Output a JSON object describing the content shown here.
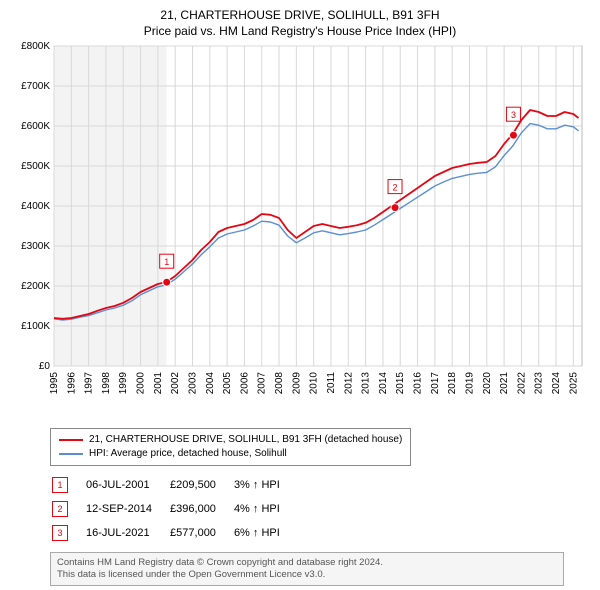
{
  "title": "21, CHARTERHOUSE DRIVE, SOLIHULL, B91 3FH",
  "subtitle": "Price paid vs. HM Land Registry's House Price Index (HPI)",
  "chart": {
    "type": "line",
    "background_color": "#ffffff",
    "plot_bg_left": "#f3f3f3",
    "grid_color": "#d8d8d8",
    "x": {
      "min": 1995,
      "max": 2025.5,
      "ticks": [
        1995,
        1996,
        1997,
        1998,
        1999,
        2000,
        2001,
        2002,
        2003,
        2004,
        2005,
        2006,
        2007,
        2008,
        2009,
        2010,
        2011,
        2012,
        2013,
        2014,
        2015,
        2016,
        2017,
        2018,
        2019,
        2020,
        2021,
        2022,
        2023,
        2024,
        2025
      ],
      "tick_fontsize": 10,
      "label_rotation": -90
    },
    "y": {
      "min": 0,
      "max": 800000,
      "ticks": [
        0,
        100000,
        200000,
        300000,
        400000,
        500000,
        600000,
        700000,
        800000
      ],
      "tick_labels": [
        "£0",
        "£100K",
        "£200K",
        "£300K",
        "£400K",
        "£500K",
        "£600K",
        "£700K",
        "£800K"
      ],
      "tick_fontsize": 10
    },
    "series": [
      {
        "name": "21, CHARTERHOUSE DRIVE, SOLIHULL, B91 3FH (detached house)",
        "color": "#e30613",
        "width": 1.8,
        "data": [
          [
            1995.0,
            120000
          ],
          [
            1995.5,
            118000
          ],
          [
            1996.0,
            120000
          ],
          [
            1996.5,
            125000
          ],
          [
            1997.0,
            130000
          ],
          [
            1997.5,
            138000
          ],
          [
            1998.0,
            145000
          ],
          [
            1998.5,
            150000
          ],
          [
            1999.0,
            158000
          ],
          [
            1999.5,
            170000
          ],
          [
            2000.0,
            185000
          ],
          [
            2000.5,
            195000
          ],
          [
            2001.0,
            205000
          ],
          [
            2001.5,
            210000
          ],
          [
            2002.0,
            225000
          ],
          [
            2002.5,
            245000
          ],
          [
            2003.0,
            265000
          ],
          [
            2003.5,
            290000
          ],
          [
            2004.0,
            310000
          ],
          [
            2004.5,
            335000
          ],
          [
            2005.0,
            345000
          ],
          [
            2005.5,
            350000
          ],
          [
            2006.0,
            355000
          ],
          [
            2006.5,
            365000
          ],
          [
            2007.0,
            380000
          ],
          [
            2007.5,
            378000
          ],
          [
            2008.0,
            370000
          ],
          [
            2008.5,
            340000
          ],
          [
            2009.0,
            320000
          ],
          [
            2009.5,
            335000
          ],
          [
            2010.0,
            350000
          ],
          [
            2010.5,
            355000
          ],
          [
            2011.0,
            350000
          ],
          [
            2011.5,
            345000
          ],
          [
            2012.0,
            348000
          ],
          [
            2012.5,
            352000
          ],
          [
            2013.0,
            358000
          ],
          [
            2013.5,
            370000
          ],
          [
            2014.0,
            385000
          ],
          [
            2014.5,
            400000
          ],
          [
            2015.0,
            415000
          ],
          [
            2015.5,
            430000
          ],
          [
            2016.0,
            445000
          ],
          [
            2016.5,
            460000
          ],
          [
            2017.0,
            475000
          ],
          [
            2017.5,
            485000
          ],
          [
            2018.0,
            495000
          ],
          [
            2018.5,
            500000
          ],
          [
            2019.0,
            505000
          ],
          [
            2019.5,
            508000
          ],
          [
            2020.0,
            510000
          ],
          [
            2020.5,
            525000
          ],
          [
            2021.0,
            555000
          ],
          [
            2021.5,
            580000
          ],
          [
            2022.0,
            615000
          ],
          [
            2022.5,
            640000
          ],
          [
            2023.0,
            635000
          ],
          [
            2023.5,
            625000
          ],
          [
            2024.0,
            625000
          ],
          [
            2024.5,
            635000
          ],
          [
            2025.0,
            630000
          ],
          [
            2025.3,
            620000
          ]
        ]
      },
      {
        "name": "HPI: Average price, detached house, Solihull",
        "color": "#5a8fd6",
        "width": 1.4,
        "data": [
          [
            1995.0,
            118000
          ],
          [
            1995.5,
            115000
          ],
          [
            1996.0,
            117000
          ],
          [
            1996.5,
            122000
          ],
          [
            1997.0,
            126000
          ],
          [
            1997.5,
            133000
          ],
          [
            1998.0,
            140000
          ],
          [
            1998.5,
            145000
          ],
          [
            1999.0,
            152000
          ],
          [
            1999.5,
            163000
          ],
          [
            2000.0,
            178000
          ],
          [
            2000.5,
            188000
          ],
          [
            2001.0,
            198000
          ],
          [
            2001.5,
            203000
          ],
          [
            2002.0,
            217000
          ],
          [
            2002.5,
            236000
          ],
          [
            2003.0,
            255000
          ],
          [
            2003.5,
            278000
          ],
          [
            2004.0,
            298000
          ],
          [
            2004.5,
            320000
          ],
          [
            2005.0,
            330000
          ],
          [
            2005.5,
            335000
          ],
          [
            2006.0,
            340000
          ],
          [
            2006.5,
            350000
          ],
          [
            2007.0,
            362000
          ],
          [
            2007.5,
            360000
          ],
          [
            2008.0,
            352000
          ],
          [
            2008.5,
            325000
          ],
          [
            2009.0,
            308000
          ],
          [
            2009.5,
            320000
          ],
          [
            2010.0,
            333000
          ],
          [
            2010.5,
            338000
          ],
          [
            2011.0,
            333000
          ],
          [
            2011.5,
            328000
          ],
          [
            2012.0,
            331000
          ],
          [
            2012.5,
            335000
          ],
          [
            2013.0,
            340000
          ],
          [
            2013.5,
            352000
          ],
          [
            2014.0,
            366000
          ],
          [
            2014.5,
            380000
          ],
          [
            2015.0,
            394000
          ],
          [
            2015.5,
            408000
          ],
          [
            2016.0,
            422000
          ],
          [
            2016.5,
            436000
          ],
          [
            2017.0,
            450000
          ],
          [
            2017.5,
            460000
          ],
          [
            2018.0,
            469000
          ],
          [
            2018.5,
            474000
          ],
          [
            2019.0,
            479000
          ],
          [
            2019.5,
            482000
          ],
          [
            2020.0,
            484000
          ],
          [
            2020.5,
            498000
          ],
          [
            2021.0,
            526000
          ],
          [
            2021.5,
            550000
          ],
          [
            2022.0,
            583000
          ],
          [
            2022.5,
            606000
          ],
          [
            2023.0,
            602000
          ],
          [
            2023.5,
            593000
          ],
          [
            2024.0,
            593000
          ],
          [
            2024.5,
            602000
          ],
          [
            2025.0,
            598000
          ],
          [
            2025.3,
            588000
          ]
        ]
      }
    ],
    "markers": [
      {
        "n": 1,
        "x": 2001.51,
        "y": 209500,
        "color": "#e30613"
      },
      {
        "n": 2,
        "x": 2014.7,
        "y": 396000,
        "color": "#e30613"
      },
      {
        "n": 3,
        "x": 2021.54,
        "y": 577000,
        "color": "#e30613"
      }
    ]
  },
  "legend": {
    "items": [
      {
        "color": "#e30613",
        "label": "21, CHARTERHOUSE DRIVE, SOLIHULL, B91 3FH (detached house)"
      },
      {
        "color": "#5a8fd6",
        "label": "HPI: Average price, detached house, Solihull"
      }
    ]
  },
  "annotations": [
    {
      "n": "1",
      "color": "#e30613",
      "date": "06-JUL-2001",
      "price": "£209,500",
      "delta": "3% ↑ HPI"
    },
    {
      "n": "2",
      "color": "#e30613",
      "date": "12-SEP-2014",
      "price": "£396,000",
      "delta": "4% ↑ HPI"
    },
    {
      "n": "3",
      "color": "#e30613",
      "date": "16-JUL-2021",
      "price": "£577,000",
      "delta": "6% ↑ HPI"
    }
  ],
  "footer": {
    "line1": "Contains HM Land Registry data © Crown copyright and database right 2024.",
    "line2": "This data is licensed under the Open Government Licence v3.0."
  }
}
